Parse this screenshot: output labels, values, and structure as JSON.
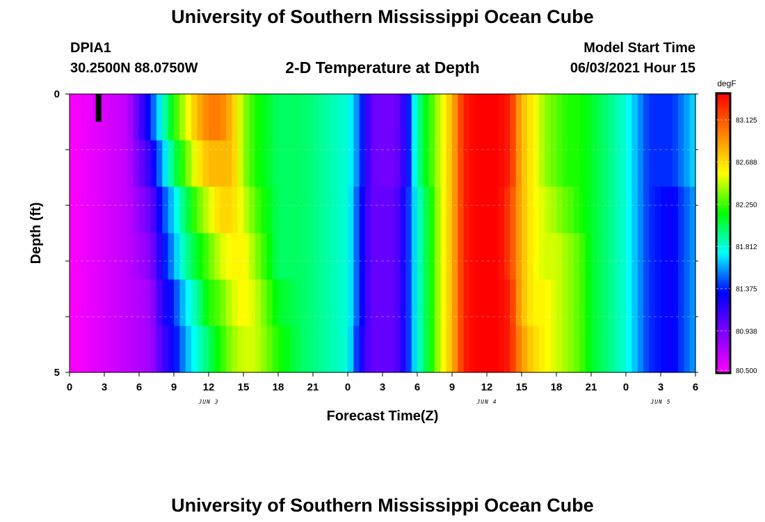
{
  "header": {
    "title": "University of Southern Mississippi Ocean Cube",
    "station_id": "DPIA1",
    "station_coords": "30.2500N  88.0750W",
    "chart_title": "2-D Temperature at Depth",
    "model_label": "Model Start Time",
    "model_time": "06/03/2021 Hour 15"
  },
  "footer": {
    "title": "University of Southern Mississippi Ocean Cube"
  },
  "chart_data": {
    "type": "heatmap",
    "title": "2-D Temperature at Depth",
    "xlabel": "Forecast Time(Z)",
    "ylabel": "Depth (ft)",
    "x_tick_labels": [
      "0",
      "3",
      "6",
      "9",
      "12",
      "15",
      "18",
      "21",
      "0",
      "3",
      "6",
      "9",
      "12",
      "15",
      "18",
      "21",
      "0",
      "3",
      "6"
    ],
    "x_date_labels": [
      "JUN 3",
      "JUN 4",
      "JUN 5"
    ],
    "y_tick_labels": [
      "0",
      "5"
    ],
    "ylim": [
      0,
      5
    ],
    "colorbar": {
      "unit": "degF",
      "min": 80.5,
      "max": 83.4,
      "tick_labels": [
        "83.125",
        "82.688",
        "82.250",
        "81.812",
        "81.375",
        "80.938",
        "80.500"
      ],
      "tick_values": [
        83.125,
        82.688,
        82.25,
        81.812,
        81.375,
        80.938,
        80.5
      ],
      "colors": [
        "#ff00ff",
        "#7f00ff",
        "#0000ff",
        "#00ffff",
        "#00ff00",
        "#ffff00",
        "#ff8000",
        "#ff0000"
      ]
    },
    "time_hours": [
      0,
      54
    ],
    "depth_rows_ft": [
      0,
      1,
      2,
      3,
      4,
      5
    ],
    "temperature_profile": {
      "hours": [
        0,
        5,
        7,
        8,
        9,
        10,
        11,
        12,
        13,
        14,
        15,
        16,
        18,
        20,
        22,
        24,
        25,
        26,
        27,
        28,
        29,
        30,
        31,
        32,
        33,
        34,
        35,
        36,
        37,
        38,
        39,
        40,
        41,
        42,
        43,
        44,
        45,
        46,
        47,
        48,
        49,
        50,
        52,
        54
      ],
      "depth_rows": [
        [
          80.5,
          80.7,
          81.4,
          81.8,
          82.2,
          82.5,
          82.8,
          83.0,
          83.0,
          82.8,
          82.4,
          82.2,
          82.0,
          82.0,
          81.9,
          81.8,
          81.5,
          81.0,
          80.95,
          80.95,
          81.2,
          81.9,
          82.2,
          82.5,
          82.8,
          83.3,
          83.4,
          83.4,
          83.4,
          83.3,
          82.8,
          82.6,
          82.4,
          82.3,
          82.2,
          82.2,
          82.1,
          82.0,
          81.9,
          81.8,
          81.6,
          81.4,
          81.4,
          81.7
        ],
        [
          80.5,
          80.7,
          81.2,
          81.6,
          82.0,
          82.3,
          82.6,
          82.8,
          82.8,
          82.8,
          82.4,
          82.2,
          82.0,
          82.0,
          81.9,
          81.8,
          81.5,
          81.0,
          80.95,
          80.95,
          81.2,
          81.9,
          82.2,
          82.5,
          82.8,
          83.3,
          83.4,
          83.4,
          83.4,
          83.3,
          82.8,
          82.6,
          82.4,
          82.3,
          82.2,
          82.2,
          82.1,
          82.0,
          81.9,
          81.8,
          81.6,
          81.4,
          81.4,
          81.7
        ],
        [
          80.5,
          80.7,
          81.0,
          81.4,
          81.7,
          82.0,
          82.3,
          82.5,
          82.7,
          82.7,
          82.5,
          82.3,
          82.0,
          82.0,
          81.9,
          81.8,
          81.4,
          81.0,
          81.0,
          81.0,
          81.3,
          81.8,
          82.1,
          82.5,
          82.8,
          83.3,
          83.4,
          83.4,
          83.4,
          83.2,
          82.8,
          82.6,
          82.5,
          82.4,
          82.3,
          82.2,
          82.1,
          82.0,
          81.9,
          81.8,
          81.6,
          81.4,
          81.3,
          81.6
        ],
        [
          80.5,
          80.7,
          80.9,
          81.3,
          81.6,
          81.9,
          82.1,
          82.3,
          82.5,
          82.6,
          82.6,
          82.4,
          82.0,
          82.0,
          81.9,
          81.8,
          81.4,
          81.0,
          81.0,
          81.0,
          81.3,
          81.8,
          82.1,
          82.5,
          82.8,
          83.3,
          83.4,
          83.4,
          83.4,
          83.2,
          82.8,
          82.6,
          82.5,
          82.5,
          82.4,
          82.3,
          82.1,
          82.0,
          81.9,
          81.8,
          81.6,
          81.4,
          81.3,
          81.6
        ],
        [
          80.5,
          80.7,
          80.8,
          81.2,
          81.4,
          81.7,
          81.9,
          82.2,
          82.3,
          82.5,
          82.6,
          82.5,
          82.1,
          82.0,
          81.9,
          81.8,
          81.4,
          81.0,
          81.0,
          81.0,
          81.3,
          81.8,
          82.1,
          82.5,
          82.8,
          83.3,
          83.4,
          83.4,
          83.4,
          83.3,
          82.8,
          82.6,
          82.6,
          82.5,
          82.4,
          82.3,
          82.1,
          82.0,
          81.9,
          81.8,
          81.6,
          81.4,
          81.3,
          81.6
        ],
        [
          80.5,
          80.7,
          80.8,
          81.1,
          81.3,
          81.6,
          81.8,
          82.0,
          82.2,
          82.4,
          82.5,
          82.5,
          82.2,
          82.0,
          81.9,
          81.8,
          81.3,
          81.0,
          81.0,
          81.0,
          81.3,
          81.8,
          82.1,
          82.5,
          82.8,
          83.3,
          83.4,
          83.4,
          83.4,
          83.3,
          82.9,
          82.7,
          82.6,
          82.5,
          82.4,
          82.3,
          82.1,
          82.0,
          81.9,
          81.8,
          81.6,
          81.4,
          81.3,
          81.6
        ]
      ]
    },
    "model_start_hour": 2.5,
    "grid": true
  }
}
